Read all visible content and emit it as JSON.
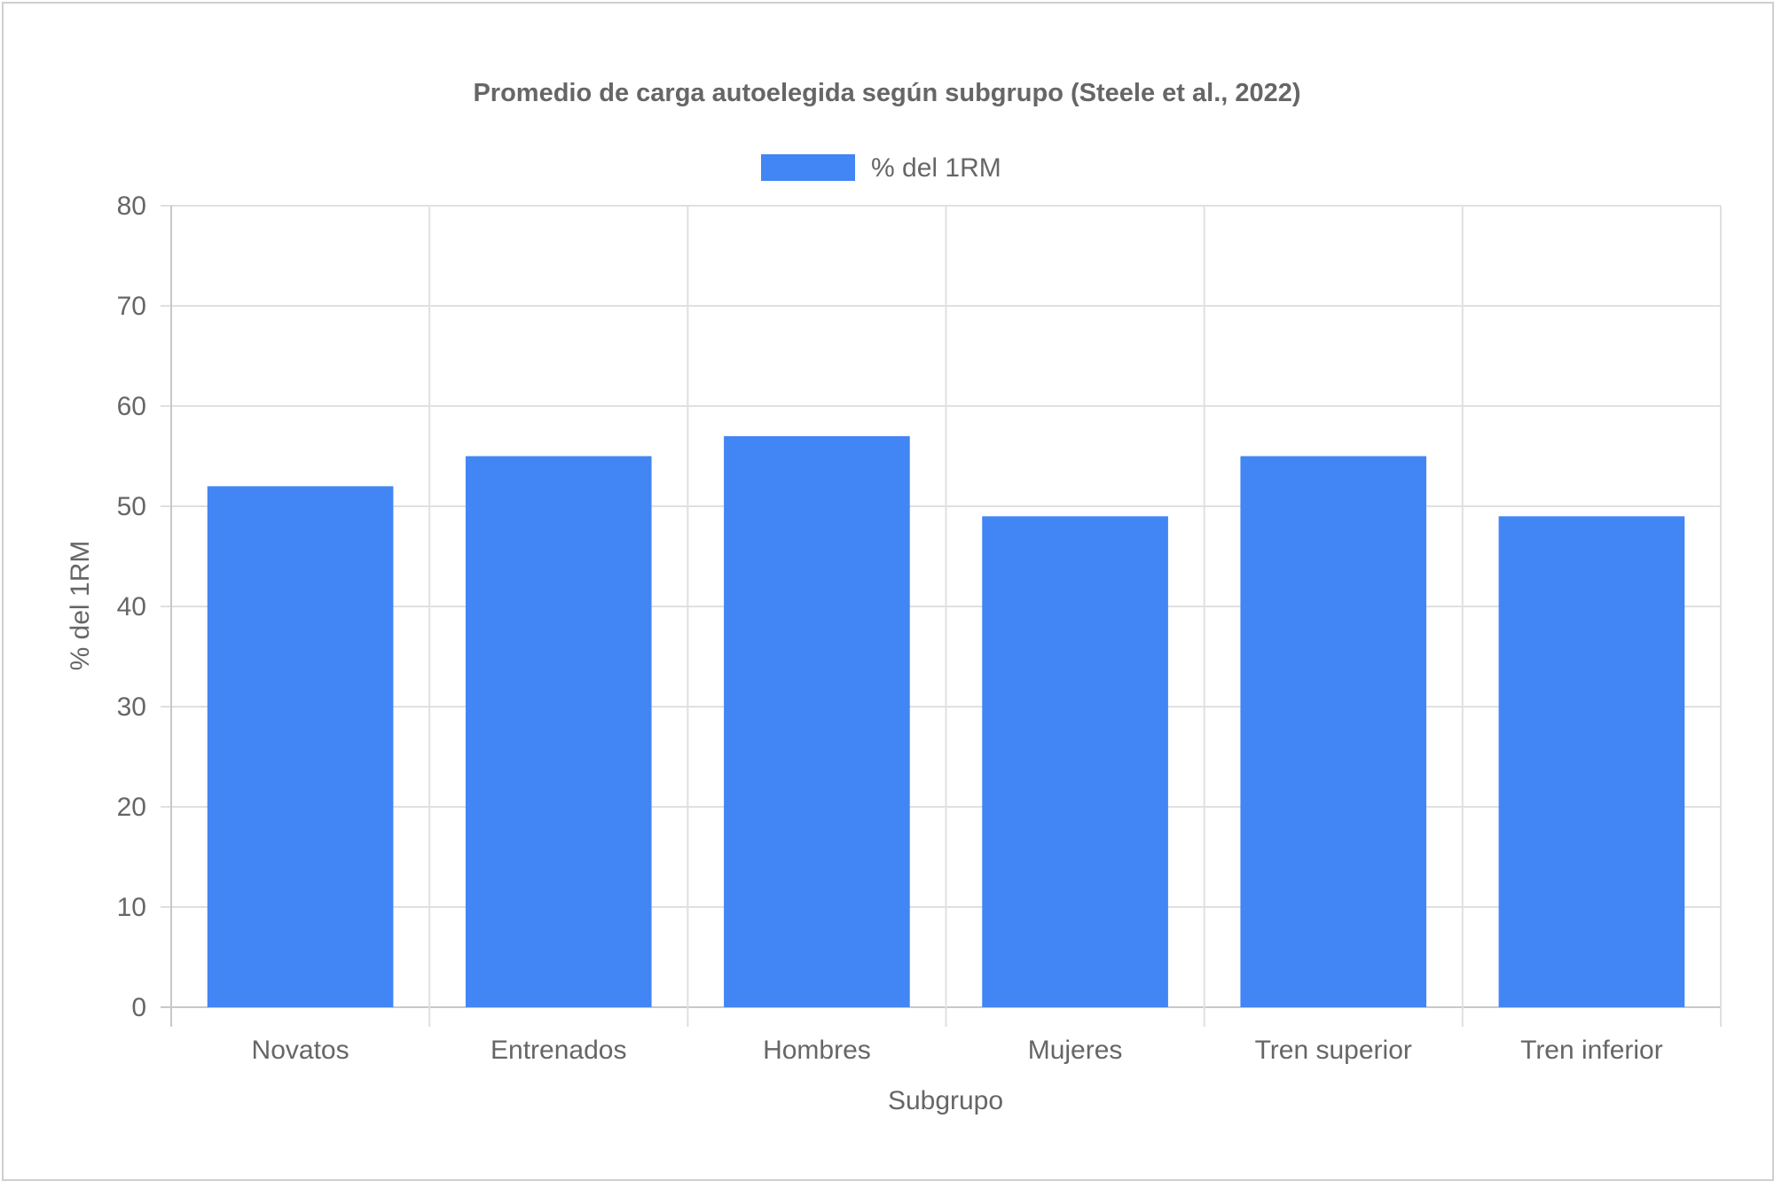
{
  "chart_data": {
    "type": "bar",
    "title": "Promedio de carga autoelegida según subgrupo (Steele et al., 2022)",
    "xlabel": "Subgrupo",
    "ylabel": "% del 1RM",
    "categories": [
      "Novatos",
      "Entrenados",
      "Hombres",
      "Mujeres",
      "Tren superior",
      "Tren inferior"
    ],
    "series": [
      {
        "name": "% del 1RM",
        "values": [
          52,
          55,
          57,
          49,
          55,
          49
        ]
      }
    ],
    "ylim": [
      0,
      80
    ],
    "yticks": [
      "0",
      "10",
      "20",
      "30",
      "40",
      "50",
      "60",
      "70",
      "80"
    ],
    "grid": true,
    "legend_position": "top",
    "colors": {
      "bar": "#4285f4",
      "grid": "#e0e0e0",
      "text": "#666666",
      "title": "#666666"
    }
  }
}
